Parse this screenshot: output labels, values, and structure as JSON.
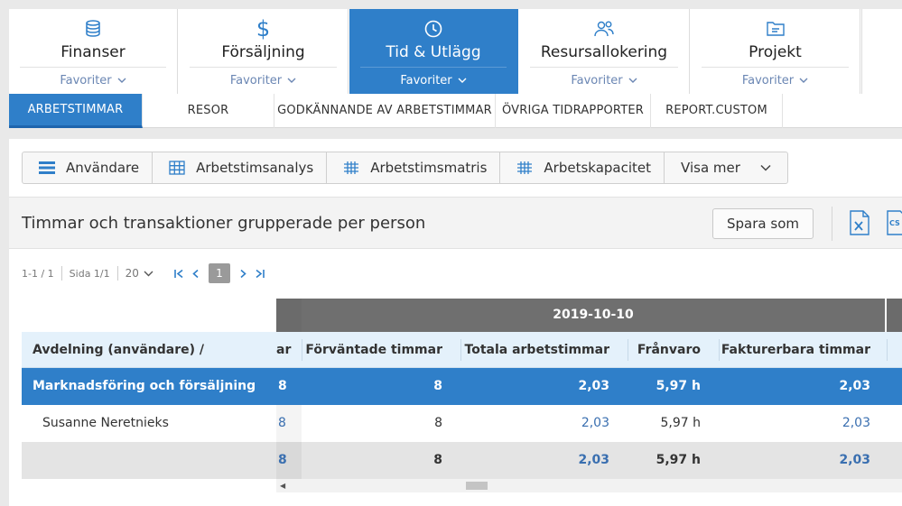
{
  "modules": [
    {
      "title": "Finanser",
      "favorites": "Favoriter",
      "icon": "coins-icon",
      "active": false
    },
    {
      "title": "Försäljning",
      "favorites": "Favoriter",
      "icon": "dollar-icon",
      "active": false
    },
    {
      "title": "Tid & Utlägg",
      "favorites": "Favoriter",
      "icon": "clock-icon",
      "active": true
    },
    {
      "title": "Resursallokering",
      "favorites": "Favoriter",
      "icon": "users-icon",
      "active": false
    },
    {
      "title": "Projekt",
      "favorites": "Favoriter",
      "icon": "folder-icon",
      "active": false
    }
  ],
  "subtabs": [
    {
      "label": "ARBETSTIMMAR",
      "active": true
    },
    {
      "label": "RESOR",
      "active": false
    },
    {
      "label": "GODKÄNNANDE AV ARBETSTIMMAR",
      "active": false
    },
    {
      "label": "ÖVRIGA TIDRAPPORTER",
      "active": false
    },
    {
      "label": "REPORT.CUSTOM",
      "active": false
    }
  ],
  "toolbar": {
    "users": "Användare",
    "analysis": "Arbetstimsanalys",
    "matrix": "Arbetstimsmatris",
    "capacity": "Arbetskapacitet",
    "more": "Visa mer"
  },
  "report": {
    "title": "Timmar och transaktioner grupperade per person",
    "save_as": "Spara som",
    "csv_label": "CS"
  },
  "pager": {
    "range": "1-1 / 1",
    "page_info": "Sida 1/1",
    "page_size": "20",
    "current_page": "1"
  },
  "table": {
    "date": "2019-10-10",
    "columns": {
      "group": "Avdelning (användare) / Användare",
      "partial": "ar",
      "expected": "Förväntade timmar",
      "total": "Totala arbetstimmar",
      "absence": "Frånvaro",
      "billable": "Fakturerbara timmar"
    },
    "rows": [
      {
        "name": "Marknadsföring och försäljning",
        "partial": "8",
        "expected": "8",
        "total": "2,03",
        "absence": "5,97 h",
        "billable": "2,03"
      },
      {
        "name": "Susanne Neretnieks",
        "partial": "8",
        "expected": "8",
        "total": "2,03",
        "absence": "5,97 h",
        "billable": "2,03"
      },
      {
        "name": "",
        "partial": "8",
        "expected": "8",
        "total": "2,03",
        "absence": "5,97 h",
        "billable": "2,03"
      }
    ]
  },
  "colors": {
    "accent": "#2f7fc9",
    "header_row": "#e4f1fb",
    "date_band": "#6f6f6f",
    "link": "#3a6fb0"
  }
}
